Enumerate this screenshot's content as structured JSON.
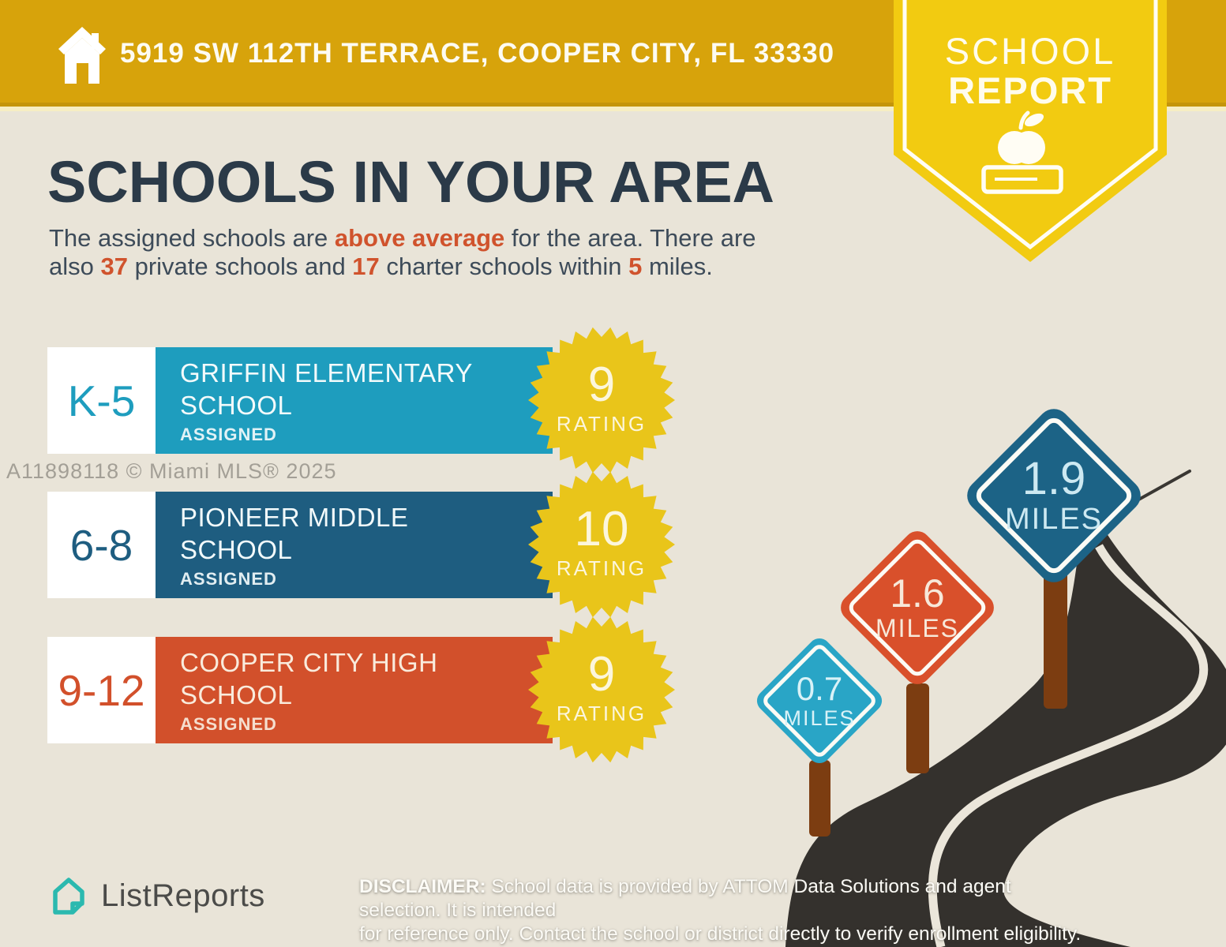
{
  "banner": {
    "address": "5919 SW 112TH TERRACE, COOPER CITY, FL 33330"
  },
  "ribbon": {
    "line1": "SCHOOL",
    "line2": "REPORT",
    "icon": "apple-on-book-icon"
  },
  "heading": {
    "title": "SCHOOLS IN YOUR AREA"
  },
  "intro": {
    "t1": "The assigned schools are ",
    "hl1": "above average",
    "t2": " for the area. There are",
    "t3": "also ",
    "hl2": "37",
    "t4": " private schools and ",
    "hl3": "17",
    "t5": " charter schools within ",
    "hl4": "5",
    "t6": " miles."
  },
  "schools": [
    {
      "grade": "K-5",
      "name1": "GRIFFIN ELEMENTARY",
      "name2": "SCHOOL",
      "status": "ASSIGNED",
      "rating": "9",
      "rating_label": "RATING",
      "color": "#1E9DBE"
    },
    {
      "grade": "6-8",
      "name1": "PIONEER MIDDLE",
      "name2": "SCHOOL",
      "status": "ASSIGNED",
      "rating": "10",
      "rating_label": "RATING",
      "color": "#1E5D80"
    },
    {
      "grade": "9-12",
      "name1": "COOPER CITY HIGH",
      "name2": "SCHOOL",
      "status": "ASSIGNED",
      "rating": "9",
      "rating_label": "RATING",
      "color": "#D2502B"
    }
  ],
  "signs": [
    {
      "distance": "0.7",
      "unit": "MILES",
      "color": "#29A5C6"
    },
    {
      "distance": "1.6",
      "unit": "MILES",
      "color": "#D9502B"
    },
    {
      "distance": "1.9",
      "unit": "MILES",
      "color": "#1C6386"
    }
  ],
  "watermark": "A11898118 © Miami MLS® 2025",
  "footer": {
    "brand": "ListReports",
    "disclaimer_label": "DISCLAIMER:",
    "disclaimer_line1": " School data is provided by ATTOM Data Solutions and agent selection. It is intended",
    "disclaimer_line2": "for reference only. Contact the school or district directly to verify enrollment eligibility."
  },
  "colors": {
    "bg": "#E9E4D8",
    "gold": "#D7A30B",
    "gold-dark": "#C4950A",
    "gold-strip": "#F6EEC3",
    "badge-yellow": "#F2CB11",
    "navy": "#2B3A48",
    "body": "#3D4B59",
    "accent-orange": "#D0532D",
    "teal": "#1E9DBE",
    "blue": "#1E5D80",
    "red": "#D2502B",
    "burst": "#E9C51A",
    "burst-text": "#FCF6DC",
    "sign-teal": "#29A5C6",
    "sign-orange": "#D9502B",
    "sign-blue": "#1C6386",
    "post": "#7C3D11",
    "road": "#34312D",
    "road-line": "#EBE6DA",
    "watermark": "#A39F96",
    "logo-teal": "#2BB9AF",
    "logo-text": "#4B4B49"
  }
}
